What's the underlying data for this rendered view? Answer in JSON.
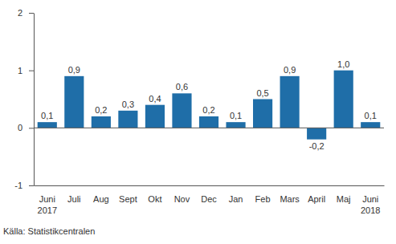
{
  "chart_data": {
    "type": "bar",
    "categories": [
      "Juni 2017",
      "Juli",
      "Aug",
      "Sept",
      "Okt",
      "Nov",
      "Dec",
      "Jan",
      "Feb",
      "Mars",
      "April",
      "Maj",
      "Juni 2018"
    ],
    "values": [
      0.1,
      0.9,
      0.2,
      0.3,
      0.4,
      0.6,
      0.2,
      0.1,
      0.5,
      0.9,
      -0.2,
      1.0,
      0.1
    ],
    "value_labels": [
      "0,1",
      "0,9",
      "0,2",
      "0,3",
      "0,4",
      "0,6",
      "0,2",
      "0,1",
      "0,5",
      "0,9",
      "-0,2",
      "1,0",
      "0,1"
    ],
    "color": "#1f6ea8",
    "ylim": [
      -1,
      2
    ],
    "yticks": [
      -1,
      0,
      1,
      2
    ],
    "grid": false,
    "data_labels": true,
    "annotations": [
      "Källa: Statistikcentralen"
    ]
  }
}
